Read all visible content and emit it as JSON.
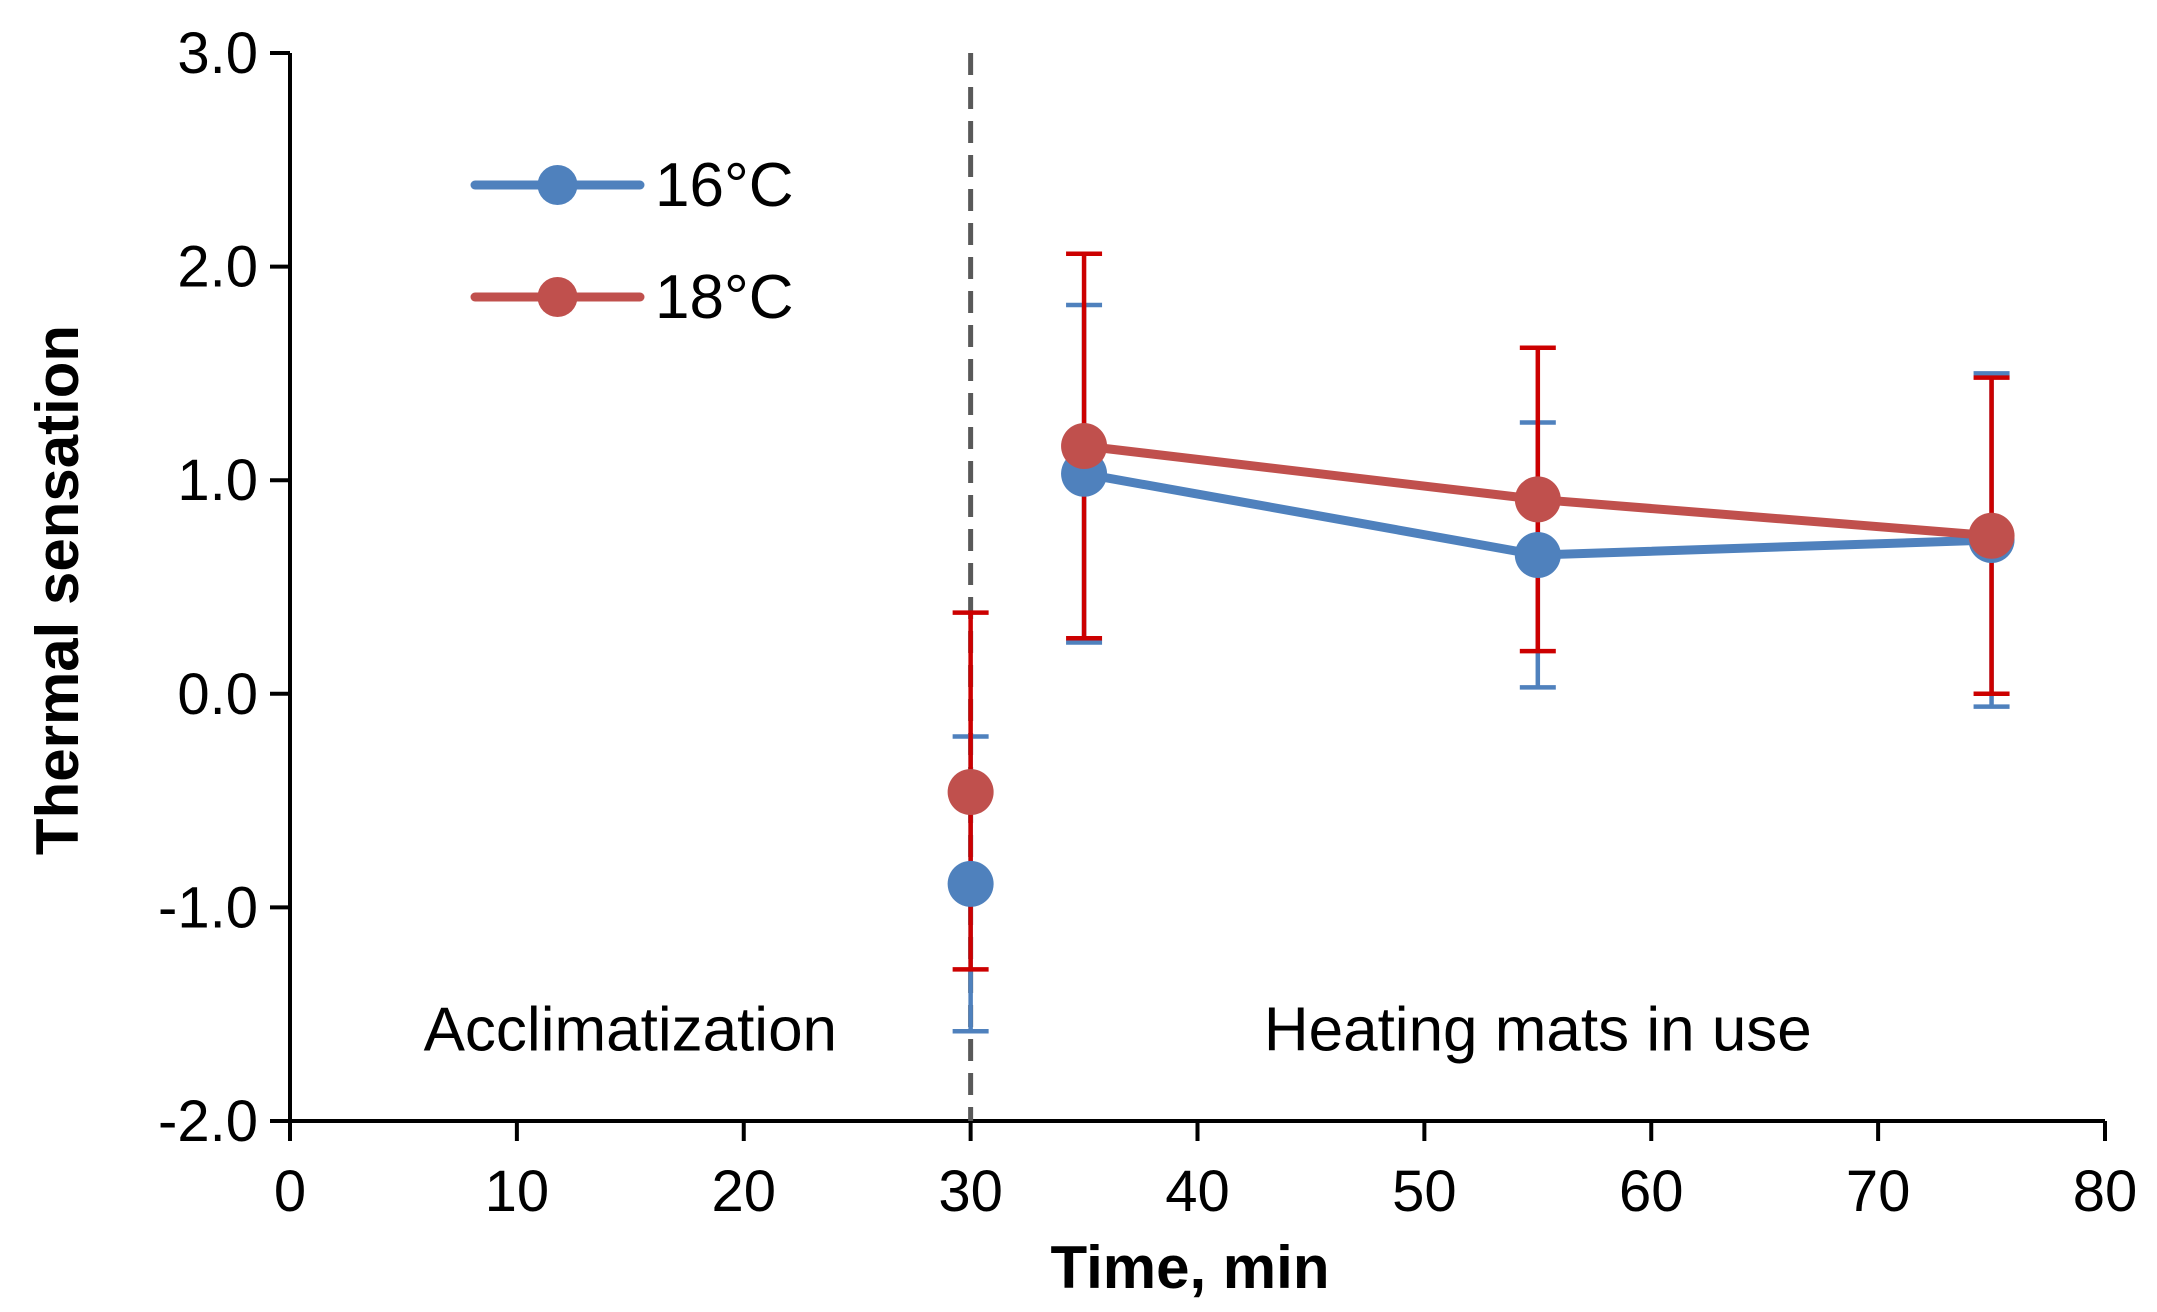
{
  "chart_data": {
    "type": "line",
    "title": "",
    "xlabel": "Time, min",
    "ylabel": "Thermal sensation",
    "xlim": [
      0,
      80
    ],
    "ylim": [
      -2.0,
      3.0
    ],
    "x_ticks": [
      0,
      10,
      20,
      30,
      40,
      50,
      60,
      70,
      80
    ],
    "x_tick_labels": [
      "0",
      "10",
      "20",
      "30",
      "40",
      "50",
      "60",
      "70",
      "80"
    ],
    "y_ticks": [
      -2.0,
      -1.0,
      0.0,
      1.0,
      2.0,
      3.0
    ],
    "y_tick_labels": [
      "-2.0",
      "-1.0",
      "0.0",
      "1.0",
      "2.0",
      "3.0"
    ],
    "grid": false,
    "legend_position": "top-left",
    "phase_divider": {
      "x": 30,
      "style": "dashed",
      "color": "#595959"
    },
    "annotations": [
      {
        "text": "Acclimatization",
        "x": 15,
        "y": -1.67
      },
      {
        "text": "Heating mats in use",
        "x": 55,
        "y": -1.67
      }
    ],
    "series": [
      {
        "name": "16°C",
        "color": "#4F81BD",
        "error_color": "#4F81BD",
        "points": [
          {
            "x": 30,
            "y": -0.89,
            "err_low": -1.58,
            "err_high": -0.2,
            "connected": false
          },
          {
            "x": 35,
            "y": 1.03,
            "err_low": 0.24,
            "err_high": 1.82,
            "connected": true
          },
          {
            "x": 55,
            "y": 0.65,
            "err_low": 0.03,
            "err_high": 1.27,
            "connected": true
          },
          {
            "x": 75,
            "y": 0.72,
            "err_low": -0.06,
            "err_high": 1.5,
            "connected": true
          }
        ]
      },
      {
        "name": "18°C",
        "color": "#C0504D",
        "error_color": "#CC0000",
        "points": [
          {
            "x": 30,
            "y": -0.46,
            "err_low": -1.29,
            "err_high": 0.38,
            "connected": false
          },
          {
            "x": 35,
            "y": 1.16,
            "err_low": 0.26,
            "err_high": 2.06,
            "connected": true
          },
          {
            "x": 55,
            "y": 0.91,
            "err_low": 0.2,
            "err_high": 1.62,
            "connected": true
          },
          {
            "x": 75,
            "y": 0.74,
            "err_low": 0.0,
            "err_high": 1.48,
            "connected": true
          }
        ]
      }
    ]
  }
}
